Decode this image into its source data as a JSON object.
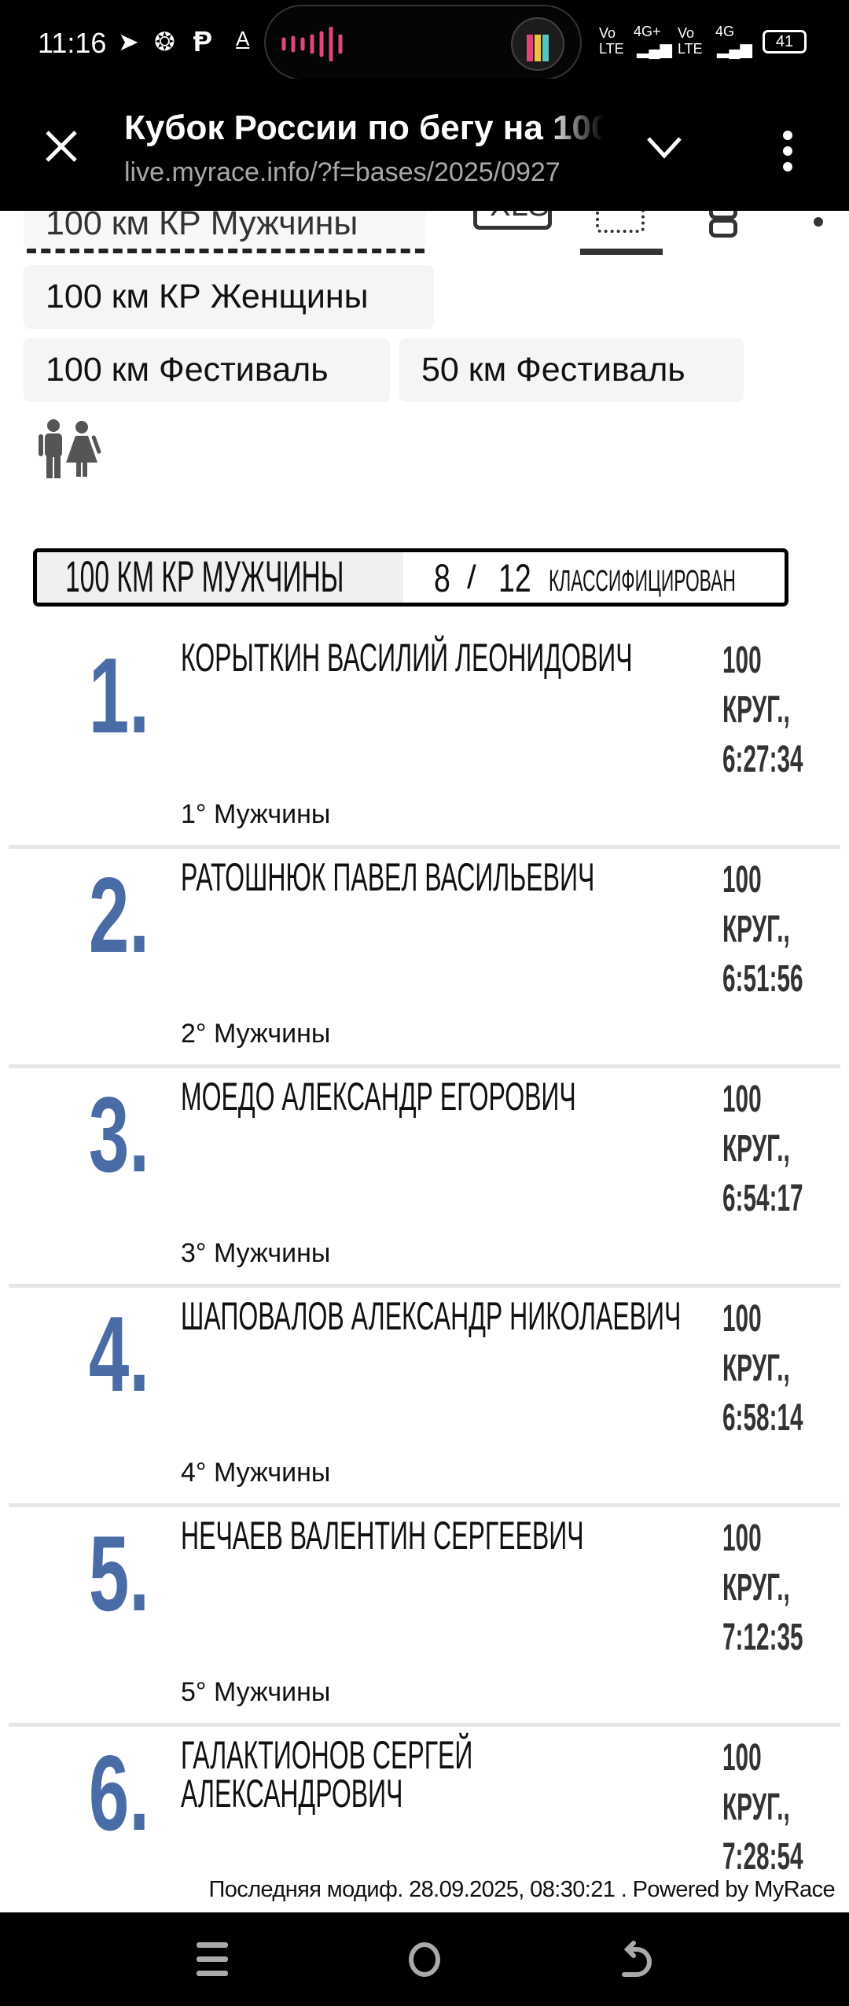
{
  "status_bar": {
    "time": "11:16",
    "notification_icons": [
      "telegram-icon",
      "leaf-icon",
      "p-icon",
      "a-icon"
    ],
    "network_1": "Vo LTE",
    "network_1_type": "4G+",
    "network_2": "Vo LTE",
    "network_2_type": "4G",
    "battery": "41"
  },
  "browser": {
    "title": "Кубок России по бегу на 100",
    "url": "live.myrace.info/?f=bases/2025/0927"
  },
  "race_tabs": {
    "active": "100 км КР Мужчины",
    "items": [
      "100 км КР Женщины",
      "100 км Фестиваль",
      "50 км Фестиваль"
    ],
    "toolbar_icons": [
      "xls-icon",
      "print-view-icon",
      "layers-icon",
      "more-icon"
    ],
    "xls_label": "XLS"
  },
  "gender_filter_icon": "people-icon",
  "category_header": {
    "title": "100 КМ КР МУЖЧИНЫ",
    "classified": "8",
    "separator": "/",
    "total": "12",
    "classified_label": "КЛАССИФИЦИРОВАН"
  },
  "accent_color": "#4a6ca6",
  "results": [
    {
      "rank": "1.",
      "name": "КОРЫТКИН ВАСИЛИЙ ЛЕОНИДОВИЧ",
      "laps": "100",
      "laps_unit": "КРУГ.,",
      "time": "6:27:34",
      "category": "1° Мужчины"
    },
    {
      "rank": "2.",
      "name": "РАТОШНЮК ПАВЕЛ ВАСИЛЬЕВИЧ",
      "laps": "100",
      "laps_unit": "КРУГ.,",
      "time": "6:51:56",
      "category": "2° Мужчины"
    },
    {
      "rank": "3.",
      "name": "МОЕДО АЛЕКСАНДР ЕГОРОВИЧ",
      "laps": "100",
      "laps_unit": "КРУГ.,",
      "time": "6:54:17",
      "category": "3° Мужчины"
    },
    {
      "rank": "4.",
      "name": "ШАПОВАЛОВ АЛЕКСАНДР НИКОЛАЕВИЧ",
      "laps": "100",
      "laps_unit": "КРУГ.,",
      "time": "6:58:14",
      "category": "4° Мужчины"
    },
    {
      "rank": "5.",
      "name": "НЕЧАЕВ ВАЛЕНТИН СЕРГЕЕВИЧ",
      "laps": "100",
      "laps_unit": "КРУГ.,",
      "time": "7:12:35",
      "category": "5° Мужчины"
    },
    {
      "rank": "6.",
      "name": "ГАЛАКТИОНОВ СЕРГЕЙ АЛЕКСАНДРОВИЧ",
      "laps": "100",
      "laps_unit": "КРУГ.,",
      "time": "7:28:54",
      "category": ""
    }
  ],
  "footer": {
    "text": "Последняя модиф. 28.09.2025, 08:30:21 . Powered by MyRace"
  },
  "nav_bar": [
    "recent-apps-icon",
    "home-icon",
    "back-icon"
  ]
}
